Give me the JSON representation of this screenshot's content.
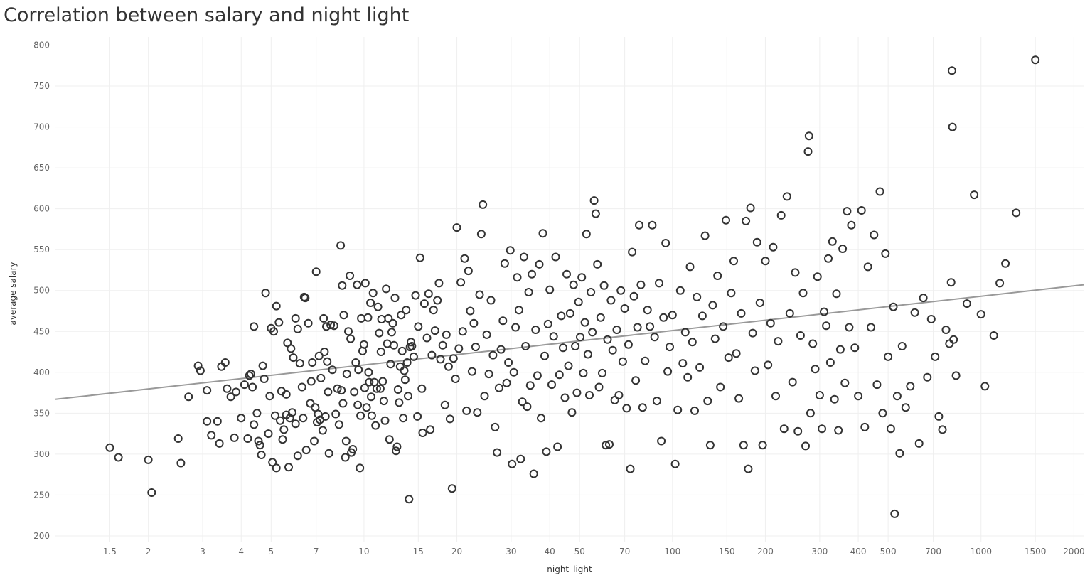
{
  "chart_data": {
    "type": "scatter",
    "title": "Correlation between salary and night light",
    "xlabel": "night_light",
    "ylabel": "average salary",
    "x_scale": "log",
    "xlim": [
      1.0,
      2150
    ],
    "ylim": [
      193,
      810
    ],
    "x_ticks": [
      1.5,
      2,
      3,
      4,
      5,
      7,
      10,
      15,
      20,
      30,
      40,
      50,
      70,
      100,
      150,
      200,
      300,
      400,
      500,
      700,
      1000,
      1500,
      2000
    ],
    "y_ticks": [
      200,
      250,
      300,
      350,
      400,
      450,
      500,
      550,
      600,
      650,
      700,
      750,
      800
    ],
    "grid": true,
    "legend": "none",
    "trendline": {
      "type": "linear-in-log-x",
      "x": [
        1.0,
        2150
      ],
      "y": [
        367,
        507
      ],
      "color": "#999999"
    },
    "marker": {
      "shape": "hollow-circle",
      "color": "#333333"
    },
    "points": [
      [
        1.5,
        308
      ],
      [
        1.6,
        296
      ],
      [
        2.0,
        293
      ],
      [
        2.05,
        253
      ],
      [
        2.5,
        319
      ],
      [
        2.55,
        289
      ],
      [
        2.7,
        370
      ],
      [
        2.9,
        408
      ],
      [
        2.95,
        402
      ],
      [
        3.1,
        378
      ],
      [
        3.1,
        340
      ],
      [
        3.2,
        323
      ],
      [
        3.35,
        340
      ],
      [
        3.4,
        313
      ],
      [
        3.45,
        407
      ],
      [
        3.55,
        412
      ],
      [
        3.6,
        380
      ],
      [
        3.7,
        370
      ],
      [
        3.8,
        320
      ],
      [
        3.85,
        376
      ],
      [
        4.0,
        344
      ],
      [
        4.1,
        385
      ],
      [
        4.2,
        319
      ],
      [
        4.25,
        396
      ],
      [
        4.3,
        398
      ],
      [
        4.35,
        382
      ],
      [
        4.4,
        456
      ],
      [
        4.4,
        336
      ],
      [
        4.5,
        350
      ],
      [
        4.55,
        316
      ],
      [
        4.6,
        311
      ],
      [
        4.65,
        299
      ],
      [
        4.7,
        408
      ],
      [
        4.75,
        392
      ],
      [
        4.8,
        497
      ],
      [
        4.9,
        325
      ],
      [
        4.95,
        371
      ],
      [
        5.0,
        454
      ],
      [
        5.05,
        290
      ],
      [
        5.1,
        450
      ],
      [
        5.15,
        347
      ],
      [
        5.2,
        283
      ],
      [
        5.2,
        481
      ],
      [
        5.3,
        461
      ],
      [
        5.35,
        341
      ],
      [
        5.4,
        377
      ],
      [
        5.45,
        318
      ],
      [
        5.5,
        330
      ],
      [
        5.6,
        348
      ],
      [
        5.6,
        373
      ],
      [
        5.65,
        436
      ],
      [
        5.7,
        284
      ],
      [
        5.75,
        344
      ],
      [
        5.8,
        429
      ],
      [
        5.85,
        351
      ],
      [
        5.9,
        418
      ],
      [
        6.0,
        466
      ],
      [
        6.0,
        337
      ],
      [
        6.1,
        298
      ],
      [
        6.1,
        453
      ],
      [
        6.2,
        411
      ],
      [
        6.3,
        382
      ],
      [
        6.35,
        344
      ],
      [
        6.4,
        492
      ],
      [
        6.45,
        491
      ],
      [
        6.5,
        305
      ],
      [
        6.6,
        460
      ],
      [
        6.7,
        362
      ],
      [
        6.75,
        389
      ],
      [
        6.8,
        412
      ],
      [
        6.9,
        316
      ],
      [
        6.95,
        357
      ],
      [
        7.0,
        523
      ],
      [
        7.05,
        339
      ],
      [
        7.1,
        349
      ],
      [
        7.15,
        420
      ],
      [
        7.2,
        342
      ],
      [
        7.25,
        393
      ],
      [
        7.35,
        329
      ],
      [
        7.4,
        466
      ],
      [
        7.45,
        425
      ],
      [
        7.5,
        346
      ],
      [
        7.55,
        456
      ],
      [
        7.6,
        413
      ],
      [
        7.65,
        376
      ],
      [
        7.7,
        301
      ],
      [
        7.8,
        458
      ],
      [
        7.9,
        403
      ],
      [
        8.0,
        457
      ],
      [
        8.1,
        349
      ],
      [
        8.2,
        380
      ],
      [
        8.3,
        336
      ],
      [
        8.4,
        555
      ],
      [
        8.45,
        378
      ],
      [
        8.5,
        506
      ],
      [
        8.55,
        362
      ],
      [
        8.6,
        470
      ],
      [
        8.7,
        296
      ],
      [
        8.75,
        316
      ],
      [
        8.8,
        398
      ],
      [
        8.9,
        450
      ],
      [
        9.0,
        518
      ],
      [
        9.05,
        441
      ],
      [
        9.1,
        302
      ],
      [
        9.2,
        306
      ],
      [
        9.3,
        376
      ],
      [
        9.4,
        412
      ],
      [
        9.5,
        507
      ],
      [
        9.55,
        360
      ],
      [
        9.6,
        403
      ],
      [
        9.7,
        283
      ],
      [
        9.75,
        347
      ],
      [
        9.8,
        466
      ],
      [
        9.9,
        426
      ],
      [
        10.0,
        434
      ],
      [
        10.05,
        381
      ],
      [
        10.1,
        509
      ],
      [
        10.2,
        357
      ],
      [
        10.3,
        467
      ],
      [
        10.35,
        400
      ],
      [
        10.4,
        388
      ],
      [
        10.5,
        485
      ],
      [
        10.55,
        370
      ],
      [
        10.6,
        347
      ],
      [
        10.7,
        497
      ],
      [
        10.8,
        388
      ],
      [
        10.9,
        335
      ],
      [
        11.0,
        380
      ],
      [
        11.1,
        480
      ],
      [
        11.2,
        448
      ],
      [
        11.3,
        380
      ],
      [
        11.35,
        425
      ],
      [
        11.4,
        465
      ],
      [
        11.5,
        389
      ],
      [
        11.6,
        365
      ],
      [
        11.7,
        341
      ],
      [
        11.8,
        502
      ],
      [
        11.9,
        435
      ],
      [
        12.0,
        466
      ],
      [
        12.1,
        318
      ],
      [
        12.2,
        410
      ],
      [
        12.3,
        449
      ],
      [
        12.4,
        460
      ],
      [
        12.5,
        433
      ],
      [
        12.6,
        491
      ],
      [
        12.7,
        304
      ],
      [
        12.8,
        309
      ],
      [
        12.9,
        379
      ],
      [
        13.0,
        363
      ],
      [
        13.1,
        407
      ],
      [
        13.2,
        470
      ],
      [
        13.3,
        426
      ],
      [
        13.4,
        344
      ],
      [
        13.5,
        402
      ],
      [
        13.6,
        391
      ],
      [
        13.7,
        476
      ],
      [
        13.8,
        412
      ],
      [
        13.9,
        371
      ],
      [
        14.0,
        245
      ],
      [
        14.1,
        431
      ],
      [
        14.2,
        437
      ],
      [
        14.3,
        432
      ],
      [
        14.5,
        419
      ],
      [
        14.7,
        494
      ],
      [
        14.9,
        346
      ],
      [
        15.0,
        456
      ],
      [
        15.2,
        540
      ],
      [
        15.4,
        380
      ],
      [
        15.5,
        326
      ],
      [
        15.7,
        484
      ],
      [
        16.0,
        442
      ],
      [
        16.2,
        496
      ],
      [
        16.4,
        330
      ],
      [
        16.6,
        421
      ],
      [
        16.8,
        476
      ],
      [
        17.0,
        451
      ],
      [
        17.3,
        488
      ],
      [
        17.5,
        509
      ],
      [
        17.7,
        416
      ],
      [
        18.0,
        433
      ],
      [
        18.3,
        360
      ],
      [
        18.5,
        446
      ],
      [
        18.8,
        407
      ],
      [
        19.0,
        343
      ],
      [
        19.3,
        258
      ],
      [
        19.5,
        417
      ],
      [
        19.8,
        392
      ],
      [
        20.0,
        577
      ],
      [
        20.3,
        429
      ],
      [
        20.6,
        510
      ],
      [
        20.9,
        450
      ],
      [
        21.2,
        539
      ],
      [
        21.5,
        353
      ],
      [
        21.8,
        524
      ],
      [
        22.1,
        475
      ],
      [
        22.4,
        401
      ],
      [
        22.7,
        460
      ],
      [
        23.0,
        431
      ],
      [
        23.3,
        351
      ],
      [
        23.7,
        495
      ],
      [
        24.0,
        569
      ],
      [
        24.3,
        605
      ],
      [
        24.6,
        371
      ],
      [
        25.0,
        446
      ],
      [
        25.4,
        398
      ],
      [
        25.8,
        488
      ],
      [
        26.2,
        421
      ],
      [
        26.6,
        333
      ],
      [
        27.0,
        302
      ],
      [
        27.4,
        381
      ],
      [
        27.8,
        428
      ],
      [
        28.2,
        463
      ],
      [
        28.6,
        533
      ],
      [
        29.0,
        387
      ],
      [
        29.4,
        412
      ],
      [
        29.8,
        549
      ],
      [
        30.2,
        288
      ],
      [
        30.6,
        400
      ],
      [
        31.0,
        455
      ],
      [
        31.4,
        516
      ],
      [
        31.8,
        476
      ],
      [
        32.2,
        294
      ],
      [
        32.6,
        364
      ],
      [
        33.0,
        541
      ],
      [
        33.4,
        432
      ],
      [
        33.8,
        358
      ],
      [
        34.2,
        498
      ],
      [
        34.6,
        384
      ],
      [
        35.0,
        520
      ],
      [
        35.5,
        276
      ],
      [
        36.0,
        452
      ],
      [
        36.5,
        396
      ],
      [
        37.0,
        532
      ],
      [
        37.5,
        344
      ],
      [
        38.0,
        570
      ],
      [
        38.5,
        420
      ],
      [
        39.0,
        303
      ],
      [
        39.5,
        459
      ],
      [
        40.0,
        501
      ],
      [
        40.6,
        385
      ],
      [
        41.2,
        444
      ],
      [
        41.8,
        541
      ],
      [
        42.4,
        309
      ],
      [
        43.0,
        397
      ],
      [
        43.6,
        469
      ],
      [
        44.2,
        430
      ],
      [
        44.8,
        369
      ],
      [
        45.4,
        520
      ],
      [
        46.0,
        408
      ],
      [
        46.6,
        472
      ],
      [
        47.2,
        351
      ],
      [
        47.8,
        507
      ],
      [
        48.4,
        432
      ],
      [
        49.0,
        375
      ],
      [
        49.6,
        486
      ],
      [
        50.2,
        443
      ],
      [
        50.8,
        516
      ],
      [
        51.4,
        399
      ],
      [
        52.0,
        461
      ],
      [
        52.6,
        569
      ],
      [
        53.2,
        422
      ],
      [
        53.8,
        372
      ],
      [
        54.4,
        498
      ],
      [
        55.0,
        449
      ],
      [
        55.7,
        610
      ],
      [
        56.4,
        594
      ],
      [
        57.1,
        532
      ],
      [
        57.8,
        382
      ],
      [
        58.5,
        467
      ],
      [
        59.2,
        399
      ],
      [
        60.0,
        506
      ],
      [
        60.8,
        311
      ],
      [
        61.6,
        440
      ],
      [
        62.4,
        312
      ],
      [
        63.2,
        488
      ],
      [
        64.0,
        427
      ],
      [
        65.0,
        366
      ],
      [
        66.0,
        452
      ],
      [
        67.0,
        372
      ],
      [
        68.0,
        500
      ],
      [
        69.0,
        413
      ],
      [
        70.0,
        478
      ],
      [
        71.0,
        356
      ],
      [
        72.0,
        434
      ],
      [
        73.0,
        282
      ],
      [
        74.0,
        547
      ],
      [
        75.0,
        493
      ],
      [
        76.0,
        390
      ],
      [
        77.0,
        455
      ],
      [
        78.0,
        580
      ],
      [
        79.0,
        507
      ],
      [
        80.0,
        357
      ],
      [
        81.5,
        414
      ],
      [
        83.0,
        476
      ],
      [
        84.5,
        456
      ],
      [
        86.0,
        580
      ],
      [
        87.5,
        443
      ],
      [
        89.0,
        365
      ],
      [
        90.5,
        509
      ],
      [
        92.0,
        316
      ],
      [
        93.5,
        467
      ],
      [
        95.0,
        558
      ],
      [
        96.5,
        401
      ],
      [
        98.0,
        431
      ],
      [
        100.0,
        470
      ],
      [
        102.0,
        288
      ],
      [
        104.0,
        354
      ],
      [
        106.0,
        500
      ],
      [
        108.0,
        411
      ],
      [
        110.0,
        449
      ],
      [
        112.0,
        394
      ],
      [
        114.0,
        529
      ],
      [
        116.0,
        437
      ],
      [
        118.0,
        353
      ],
      [
        120.0,
        492
      ],
      [
        122.5,
        406
      ],
      [
        125.0,
        469
      ],
      [
        127.5,
        567
      ],
      [
        130.0,
        365
      ],
      [
        132.5,
        311
      ],
      [
        135.0,
        482
      ],
      [
        137.5,
        441
      ],
      [
        140.0,
        518
      ],
      [
        143.0,
        382
      ],
      [
        146.0,
        456
      ],
      [
        149.0,
        586
      ],
      [
        152.0,
        418
      ],
      [
        155.0,
        497
      ],
      [
        158.0,
        536
      ],
      [
        161.0,
        423
      ],
      [
        164.0,
        368
      ],
      [
        167.0,
        472
      ],
      [
        170.0,
        311
      ],
      [
        173.0,
        585
      ],
      [
        176.0,
        282
      ],
      [
        179.0,
        601
      ],
      [
        182.0,
        448
      ],
      [
        185.0,
        402
      ],
      [
        188.0,
        559
      ],
      [
        192.0,
        485
      ],
      [
        196.0,
        311
      ],
      [
        200.0,
        536
      ],
      [
        204.0,
        409
      ],
      [
        208.0,
        460
      ],
      [
        212.0,
        553
      ],
      [
        216.0,
        371
      ],
      [
        220.0,
        438
      ],
      [
        225.0,
        592
      ],
      [
        230.0,
        331
      ],
      [
        235.0,
        615
      ],
      [
        240.0,
        472
      ],
      [
        245.0,
        388
      ],
      [
        250.0,
        522
      ],
      [
        255.0,
        328
      ],
      [
        260.0,
        445
      ],
      [
        265.0,
        497
      ],
      [
        270.0,
        310
      ],
      [
        275.0,
        670
      ],
      [
        277.0,
        689
      ],
      [
        280.0,
        350
      ],
      [
        285.0,
        435
      ],
      [
        290.0,
        404
      ],
      [
        295.0,
        517
      ],
      [
        300.0,
        372
      ],
      [
        305.0,
        331
      ],
      [
        310.0,
        474
      ],
      [
        315.0,
        457
      ],
      [
        320.0,
        539
      ],
      [
        325.0,
        412
      ],
      [
        330.0,
        560
      ],
      [
        335.0,
        367
      ],
      [
        340.0,
        496
      ],
      [
        345.0,
        329
      ],
      [
        350.0,
        428
      ],
      [
        356.0,
        551
      ],
      [
        362.0,
        387
      ],
      [
        368.0,
        597
      ],
      [
        374.0,
        455
      ],
      [
        380.0,
        580
      ],
      [
        390.0,
        430
      ],
      [
        400.0,
        371
      ],
      [
        410.0,
        598
      ],
      [
        420.0,
        333
      ],
      [
        430.0,
        529
      ],
      [
        440.0,
        455
      ],
      [
        450.0,
        568
      ],
      [
        460.0,
        385
      ],
      [
        470.0,
        621
      ],
      [
        480.0,
        350
      ],
      [
        490.0,
        545
      ],
      [
        500.0,
        419
      ],
      [
        510.0,
        331
      ],
      [
        520.0,
        480
      ],
      [
        525.0,
        227
      ],
      [
        535.0,
        371
      ],
      [
        545.0,
        301
      ],
      [
        555.0,
        432
      ],
      [
        570.0,
        357
      ],
      [
        590.0,
        383
      ],
      [
        610.0,
        473
      ],
      [
        630.0,
        313
      ],
      [
        650.0,
        491
      ],
      [
        670.0,
        394
      ],
      [
        690.0,
        465
      ],
      [
        710.0,
        419
      ],
      [
        730.0,
        346
      ],
      [
        750.0,
        330
      ],
      [
        770.0,
        452
      ],
      [
        790.0,
        435
      ],
      [
        800.0,
        510
      ],
      [
        805.0,
        769
      ],
      [
        808.0,
        700
      ],
      [
        815.0,
        440
      ],
      [
        830.0,
        396
      ],
      [
        900.0,
        484
      ],
      [
        950.0,
        617
      ],
      [
        1000.0,
        471
      ],
      [
        1030.0,
        383
      ],
      [
        1100.0,
        445
      ],
      [
        1150.0,
        509
      ],
      [
        1200.0,
        533
      ],
      [
        1300.0,
        595
      ],
      [
        1500.0,
        782
      ]
    ]
  }
}
